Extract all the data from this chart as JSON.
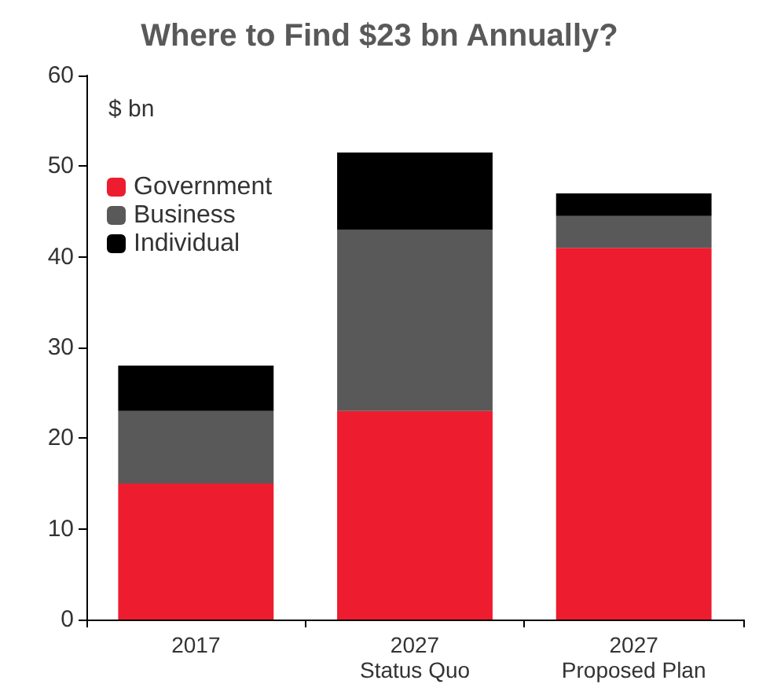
{
  "chart_data": {
    "type": "bar",
    "title": "Where to Find $23 bn Annually?",
    "ylabel": "$ bn",
    "categories": [
      "2017",
      "2027\nStatus Quo",
      "2027\nProposed Plan"
    ],
    "stacked": true,
    "series": [
      {
        "name": "Government",
        "color": "#ed1c2e",
        "values": [
          15,
          23,
          41
        ]
      },
      {
        "name": "Business",
        "color": "#595959",
        "values": [
          8,
          20,
          3.5
        ]
      },
      {
        "name": "Individual",
        "color": "#000000",
        "values": [
          5,
          8.5,
          2.5
        ]
      }
    ],
    "ylim": [
      0,
      60
    ],
    "yticks": [
      0,
      10,
      20,
      30,
      40,
      50,
      60
    ],
    "grid": false,
    "legend": "top left"
  }
}
